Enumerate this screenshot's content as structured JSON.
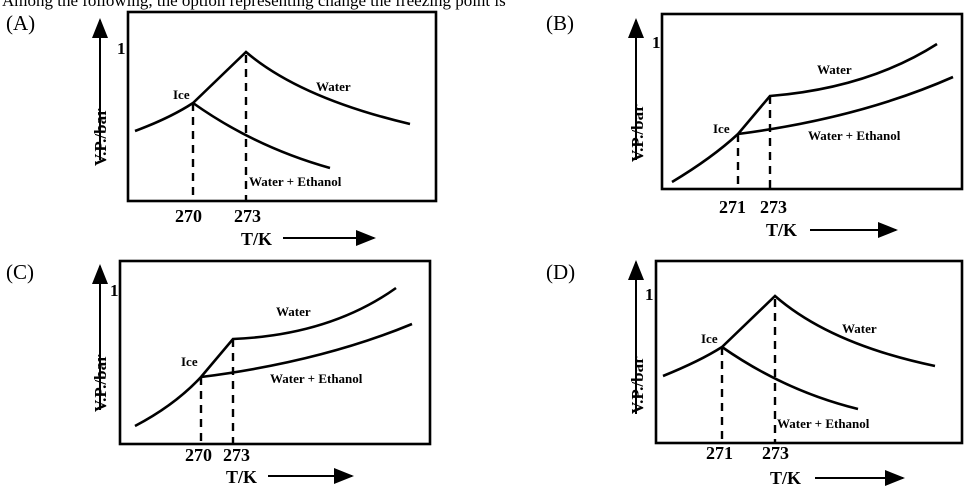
{
  "question": {
    "text": "Among the following, the option representing change the freezing point is"
  },
  "common_labels": {
    "y_axis_label": "V.P./bar",
    "x_axis_label": "T/K",
    "ytick_label": "1",
    "ice_label": "Ice",
    "water_label": "Water",
    "solution_label": "Water + Ethanol"
  },
  "options": [
    {
      "letter": "(A)",
      "ice_temp": "270",
      "water_temp": "273"
    },
    {
      "letter": "(B)",
      "ice_temp": "271",
      "water_temp": "273"
    },
    {
      "letter": "(C)",
      "ice_temp": "270",
      "water_temp": "273"
    },
    {
      "letter": "(D)",
      "ice_temp": "271",
      "water_temp": "273"
    }
  ],
  "colors": {
    "ink": "#000000",
    "background": "#ffffff"
  }
}
